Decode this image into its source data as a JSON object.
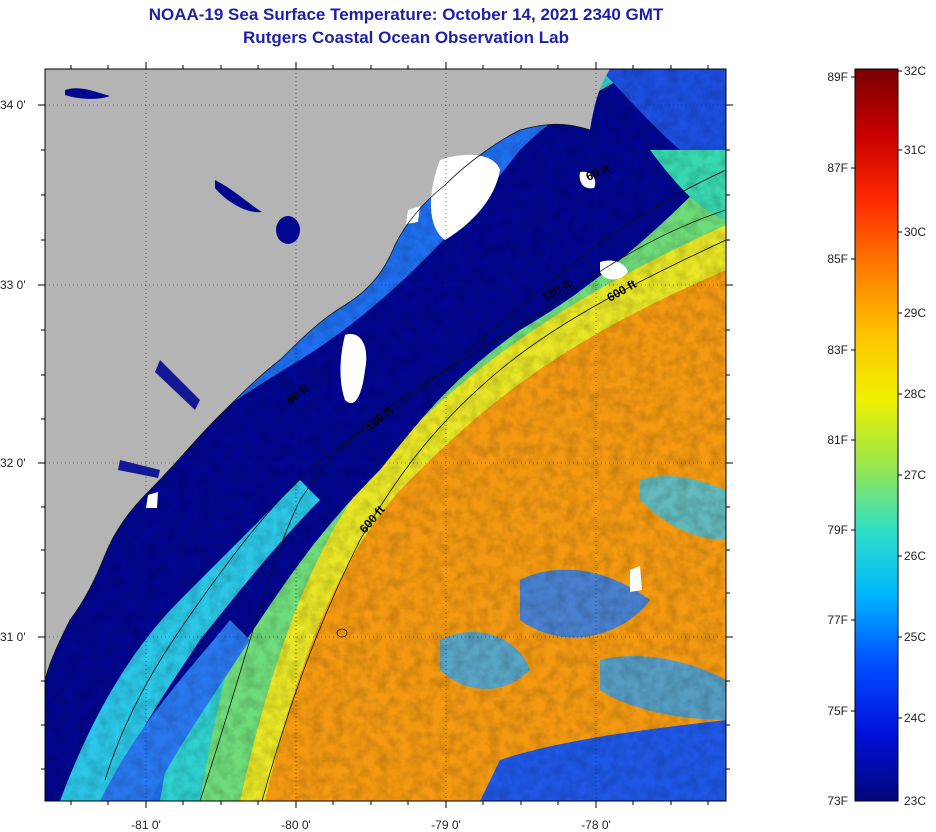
{
  "header": {
    "title": "NOAA-19 Sea Surface Temperature:  October 14, 2021 2340 GMT",
    "subtitle": "Rutgers Coastal Ocean Observation Lab"
  },
  "map": {
    "lat_labels": [
      "34 0'",
      "33 0'",
      "32 0'",
      "31 0'"
    ],
    "lon_labels": [
      "-81 0'",
      "-80 0'",
      "-79 0'",
      "-78 0'"
    ],
    "contour_labels": [
      "60 ft",
      "120 ft",
      "600 ft",
      "60 ft",
      "120 ft",
      "600 ft"
    ],
    "colors": {
      "land": "#b4b4b4",
      "cold_water": "#00078f",
      "cloud": "#ffffff"
    }
  },
  "colorbar": {
    "fahrenheit_labels": [
      "89F",
      "87F",
      "85F",
      "83F",
      "81F",
      "79F",
      "77F",
      "75F",
      "73F"
    ],
    "celsius_labels": [
      "32C",
      "31C",
      "30C",
      "29C",
      "28C",
      "27C",
      "26C",
      "25C",
      "24C",
      "23C"
    ],
    "stops": [
      "#7a0000",
      "#c80000",
      "#ff2a00",
      "#ff7a00",
      "#ffc200",
      "#f0f000",
      "#9be64b",
      "#2fe0c6",
      "#00b4ff",
      "#0050ff",
      "#0010d8",
      "#00077a"
    ]
  }
}
